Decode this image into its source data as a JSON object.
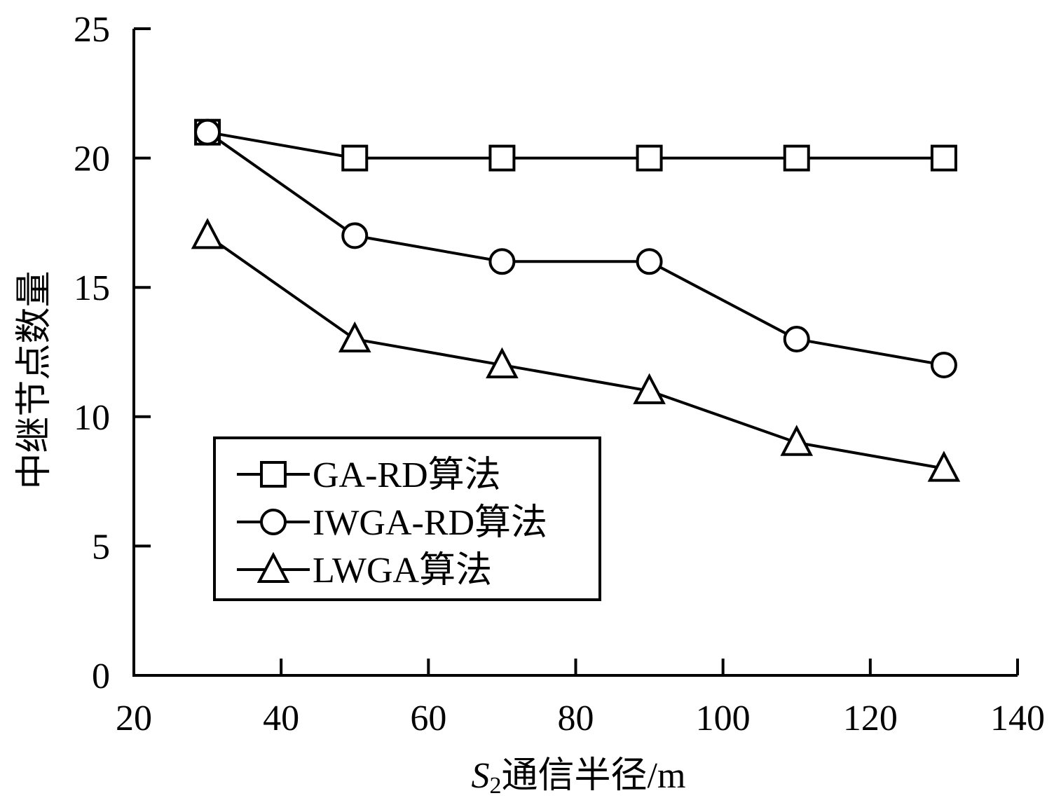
{
  "chart_data": {
    "type": "line",
    "xlabel_prefix": "S",
    "xlabel_subscript": "2",
    "xlabel_rest": "通信半径/m",
    "ylabel": "中继节点数量",
    "xlim": [
      20,
      140
    ],
    "ylim": [
      0,
      25
    ],
    "xticks": [
      20,
      40,
      60,
      80,
      100,
      120,
      140
    ],
    "yticks": [
      0,
      5,
      10,
      15,
      20,
      25
    ],
    "grid": false,
    "legend_position": "bottom-left",
    "x": [
      30,
      50,
      70,
      90,
      110,
      130
    ],
    "series": [
      {
        "name": "GA-RD算法",
        "marker": "square",
        "values": [
          21,
          20,
          20,
          20,
          20,
          20
        ]
      },
      {
        "name": "IWGA-RD算法",
        "marker": "circle",
        "values": [
          21,
          17,
          16,
          16,
          13,
          12
        ]
      },
      {
        "name": "LWGA算法",
        "marker": "triangle",
        "values": [
          17,
          13,
          12,
          11,
          9,
          8
        ]
      }
    ],
    "colors": {
      "line": "#000000",
      "marker_fill": "#ffffff"
    }
  }
}
